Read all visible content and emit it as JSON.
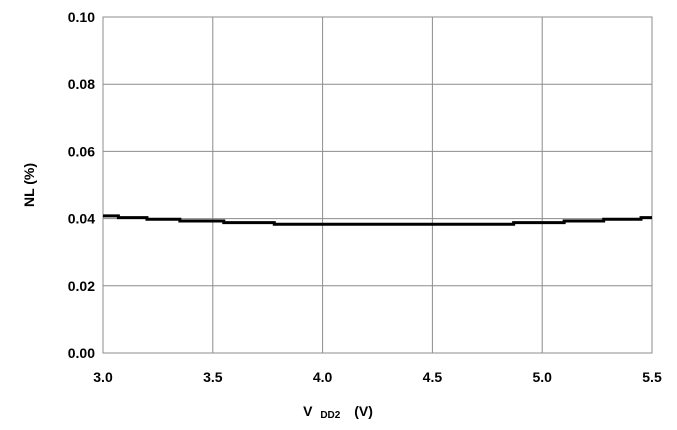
{
  "chart_data": {
    "type": "line",
    "title": "",
    "xlabel": {
      "main": "V",
      "sub": "DD2",
      "unit": "(V)"
    },
    "ylabel": "NL (%)",
    "xlim": [
      3.0,
      5.5
    ],
    "ylim": [
      0.0,
      0.1
    ],
    "x_ticks": [
      "3.0",
      "3.5",
      "4.0",
      "4.5",
      "5.0",
      "5.5"
    ],
    "y_ticks": [
      "0.00",
      "0.02",
      "0.04",
      "0.06",
      "0.08",
      "0.10"
    ],
    "grid": true,
    "legend": "none",
    "series": [
      {
        "color": "#000000",
        "x": [
          3.0,
          3.07,
          3.07,
          3.2,
          3.2,
          3.35,
          3.35,
          3.55,
          3.55,
          3.78,
          3.78,
          4.87,
          4.87,
          5.1,
          5.1,
          5.28,
          5.28,
          5.45,
          5.45,
          5.5
        ],
        "y": [
          0.0408,
          0.0408,
          0.0403,
          0.0403,
          0.0398,
          0.0398,
          0.0393,
          0.0393,
          0.0388,
          0.0388,
          0.0383,
          0.0383,
          0.0388,
          0.0388,
          0.0393,
          0.0393,
          0.0398,
          0.0398,
          0.0403,
          0.0403
        ]
      }
    ]
  }
}
